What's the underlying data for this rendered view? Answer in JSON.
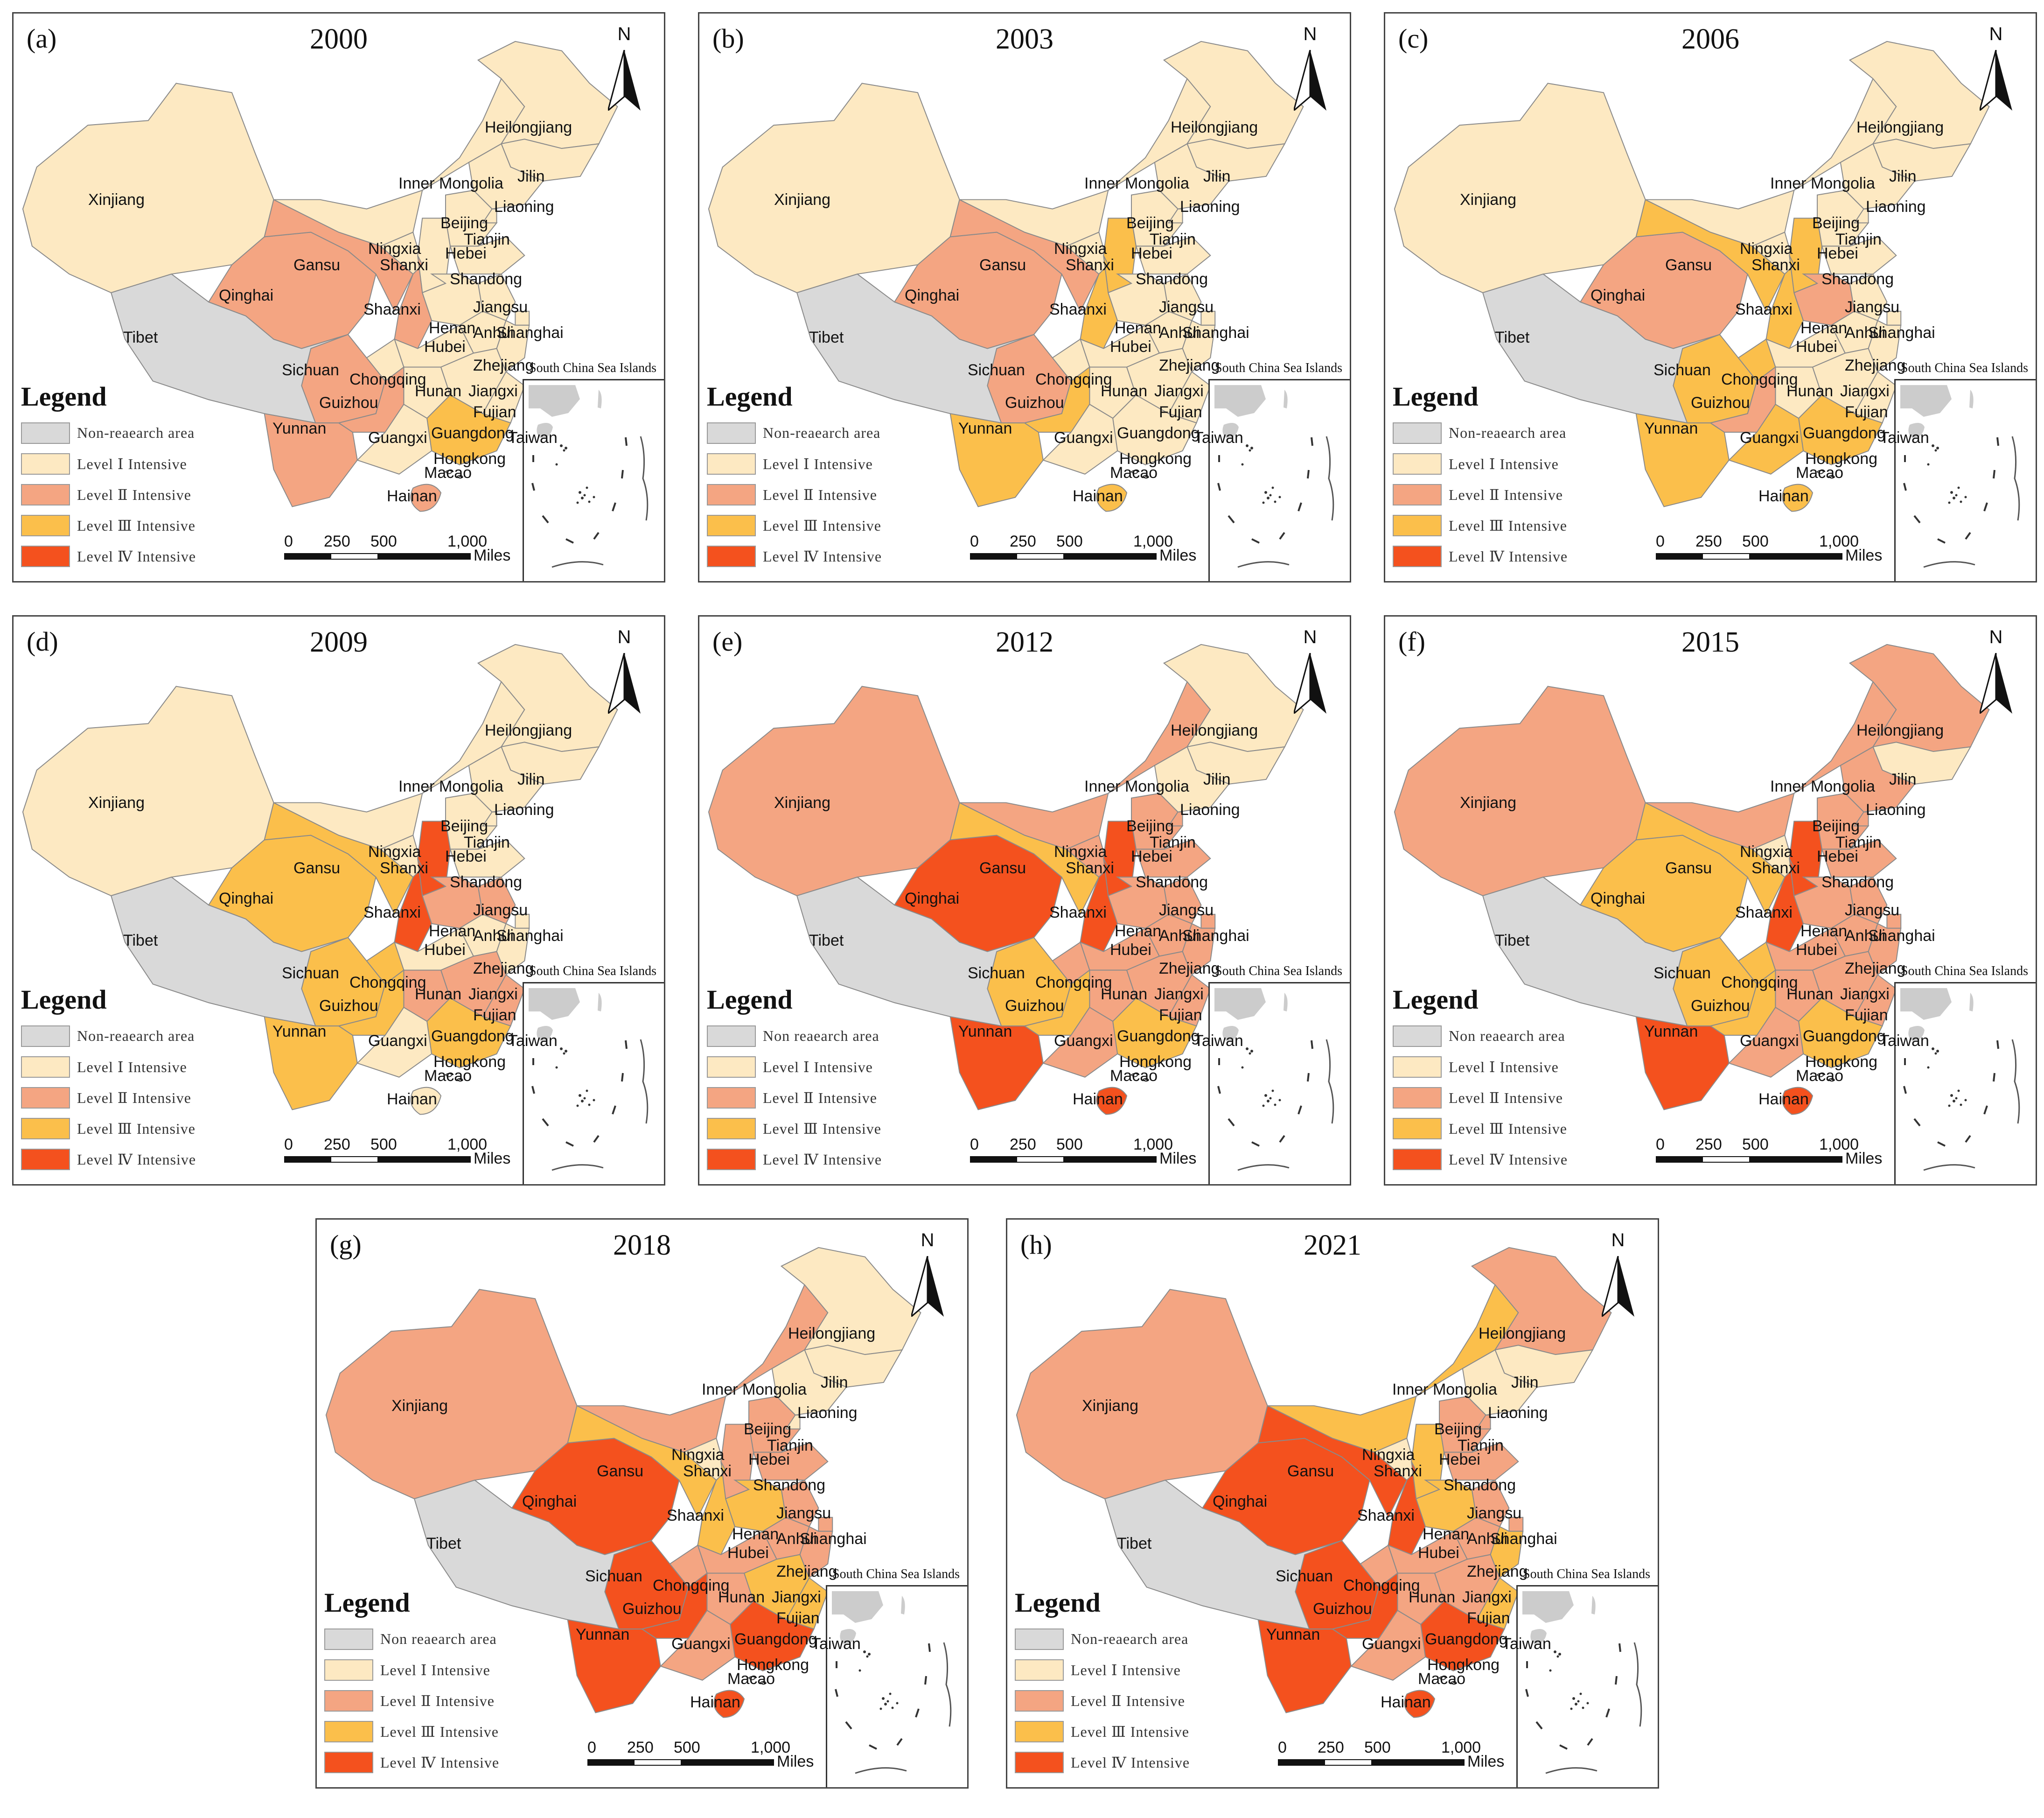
{
  "figure": {
    "legend_title": "Legend",
    "inset_title": "South China Sea Islands",
    "north_label": "N",
    "scale_ticks": [
      "0",
      "250",
      "500",
      "1,000"
    ],
    "scale_unit": "Miles"
  },
  "level_colors": {
    "non": "#d9d9d9",
    "L1": "#fde9c2",
    "L2": "#f4a582",
    "L3": "#fbbf4b",
    "L4": "#f4511e"
  },
  "panels": [
    {
      "letter": "(a)",
      "year": "2000",
      "legend": [
        "Non-reaearch area",
        "Level Ⅰ Intensive",
        "Level Ⅱ Intensive",
        "Level Ⅲ Intensive",
        "Level Ⅳ Intensive"
      ],
      "levels": {
        "Xinjiang": "L1",
        "Tibet": "non",
        "Qinghai": "L2",
        "Gansu": "L2",
        "Sichuan": "L2",
        "Yunnan": "L2",
        "Guizhou": "L2",
        "Chongqing": "L1",
        "Shaanxi": "L2",
        "Ningxia": "L1",
        "Inner Mongolia": "L1",
        "Heilongjiang": "L1",
        "Jilin": "L1",
        "Liaoning": "L1",
        "Beijing": "L1",
        "Tianjin": "L1",
        "Hebei": "L1",
        "Shanxi": "L1",
        "Shandong": "L1",
        "Henan": "L1",
        "Jiangsu": "L1",
        "Anhui": "L1",
        "Shanghai": "L1",
        "Hubei": "L1",
        "Zhejiang": "L1",
        "Hunan": "L1",
        "Jiangxi": "L1",
        "Fujian": "L1",
        "Guangxi": "L1",
        "Guangdong": "L3",
        "Hainan": "L2",
        "Taiwan": "L1"
      }
    },
    {
      "letter": "(b)",
      "year": "2003",
      "legend": [
        "Non-reaearch area",
        "Level Ⅰ Intensive",
        "Level Ⅱ Intensive",
        "Level Ⅲ Intensive",
        "Level Ⅳ Intensive"
      ],
      "levels": {
        "Xinjiang": "L1",
        "Tibet": "non",
        "Qinghai": "L2",
        "Gansu": "L2",
        "Sichuan": "L2",
        "Yunnan": "L3",
        "Guizhou": "L3",
        "Chongqing": "L1",
        "Shaanxi": "L3",
        "Ningxia": "L1",
        "Inner Mongolia": "L1",
        "Heilongjiang": "L1",
        "Jilin": "L1",
        "Liaoning": "L1",
        "Beijing": "L1",
        "Tianjin": "L1",
        "Hebei": "L1",
        "Shanxi": "L3",
        "Shandong": "L1",
        "Henan": "L1",
        "Jiangsu": "L1",
        "Anhui": "L1",
        "Shanghai": "L1",
        "Hubei": "L1",
        "Zhejiang": "L1",
        "Hunan": "L1",
        "Jiangxi": "L1",
        "Fujian": "L1",
        "Guangxi": "L1",
        "Guangdong": "L1",
        "Hainan": "L3",
        "Taiwan": "L1"
      }
    },
    {
      "letter": "(c)",
      "year": "2006",
      "legend": [
        "Non-reaearch area",
        "Level Ⅰ Intensive",
        "Level Ⅱ Intensive",
        "Level Ⅲ Intensive",
        "Level Ⅳ Intensive"
      ],
      "levels": {
        "Xinjiang": "L1",
        "Tibet": "non",
        "Qinghai": "L2",
        "Gansu": "L3",
        "Sichuan": "L3",
        "Yunnan": "L3",
        "Guizhou": "L2",
        "Chongqing": "L3",
        "Shaanxi": "L3",
        "Ningxia": "L1",
        "Inner Mongolia": "L1",
        "Heilongjiang": "L1",
        "Jilin": "L1",
        "Liaoning": "L1",
        "Beijing": "L1",
        "Tianjin": "L1",
        "Hebei": "L1",
        "Shanxi": "L3",
        "Shandong": "L1",
        "Henan": "L2",
        "Jiangsu": "L1",
        "Anhui": "L1",
        "Shanghai": "L1",
        "Hubei": "L1",
        "Zhejiang": "L1",
        "Hunan": "L1",
        "Jiangxi": "L1",
        "Fujian": "L1",
        "Guangxi": "L3",
        "Guangdong": "L3",
        "Hainan": "L3",
        "Taiwan": "L1"
      }
    },
    {
      "letter": "(d)",
      "year": "2009",
      "legend": [
        "Non-reaearch area",
        "Level Ⅰ Intensive",
        "Level Ⅱ Intensive",
        "Level Ⅲ Intensive",
        "Level Ⅳ Intensive"
      ],
      "levels": {
        "Xinjiang": "L1",
        "Tibet": "non",
        "Qinghai": "L3",
        "Gansu": "L3",
        "Sichuan": "L3",
        "Yunnan": "L3",
        "Guizhou": "L3",
        "Chongqing": "L3",
        "Shaanxi": "L4",
        "Ningxia": "L1",
        "Inner Mongolia": "L1",
        "Heilongjiang": "L1",
        "Jilin": "L1",
        "Liaoning": "L1",
        "Beijing": "L2",
        "Tianjin": "L1",
        "Hebei": "L1",
        "Shanxi": "L4",
        "Shandong": "L1",
        "Henan": "L2",
        "Jiangsu": "L2",
        "Anhui": "L1",
        "Shanghai": "L1",
        "Hubei": "L1",
        "Zhejiang": "L1",
        "Hunan": "L2",
        "Jiangxi": "L2",
        "Fujian": "L2",
        "Guangxi": "L1",
        "Guangdong": "L3",
        "Hainan": "L1",
        "Taiwan": "L1"
      }
    },
    {
      "letter": "(e)",
      "year": "2012",
      "legend": [
        "Non reaearch area",
        "Level Ⅰ Intensive",
        "Level Ⅱ Intensive",
        "Level Ⅲ Intensive",
        "Level Ⅳ Intensive"
      ],
      "levels": {
        "Xinjiang": "L2",
        "Tibet": "non",
        "Qinghai": "L4",
        "Gansu": "L3",
        "Sichuan": "L3",
        "Yunnan": "L4",
        "Guizhou": "L3",
        "Chongqing": "L2",
        "Shaanxi": "L4",
        "Ningxia": "L2",
        "Inner Mongolia": "L2",
        "Heilongjiang": "L1",
        "Jilin": "L1",
        "Liaoning": "L1",
        "Beijing": "L2",
        "Tianjin": "L2",
        "Hebei": "L2",
        "Shanxi": "L4",
        "Shandong": "L2",
        "Henan": "L2",
        "Jiangsu": "L2",
        "Anhui": "L2",
        "Shanghai": "L2",
        "Hubei": "L2",
        "Zhejiang": "L2",
        "Hunan": "L2",
        "Jiangxi": "L2",
        "Fujian": "L2",
        "Guangxi": "L2",
        "Guangdong": "L3",
        "Hainan": "L4",
        "Taiwan": "L1"
      }
    },
    {
      "letter": "(f)",
      "year": "2015",
      "legend": [
        "Non reaearch area",
        "Level Ⅰ Intensive",
        "Level Ⅱ Intensive",
        "Level Ⅲ Intensive",
        "Level Ⅳ Intensive"
      ],
      "levels": {
        "Xinjiang": "L2",
        "Tibet": "non",
        "Qinghai": "L3",
        "Gansu": "L3",
        "Sichuan": "L3",
        "Yunnan": "L4",
        "Guizhou": "L3",
        "Chongqing": "L3",
        "Shaanxi": "L4",
        "Ningxia": "L1",
        "Inner Mongolia": "L2",
        "Heilongjiang": "L2",
        "Jilin": "L1",
        "Liaoning": "L2",
        "Beijing": "L3",
        "Tianjin": "L2",
        "Hebei": "L2",
        "Shanxi": "L4",
        "Shandong": "L2",
        "Henan": "L2",
        "Jiangsu": "L2",
        "Anhui": "L2",
        "Shanghai": "L2",
        "Hubei": "L2",
        "Zhejiang": "L2",
        "Hunan": "L2",
        "Jiangxi": "L2",
        "Fujian": "L2",
        "Guangxi": "L2",
        "Guangdong": "L3",
        "Hainan": "L4",
        "Taiwan": "L1"
      }
    },
    {
      "letter": "(g)",
      "year": "2018",
      "legend": [
        "Non reaearch area",
        "Level Ⅰ Intensive",
        "Level Ⅱ Intensive",
        "Level Ⅲ Intensive",
        "Level Ⅳ Intensive"
      ],
      "levels": {
        "Xinjiang": "L2",
        "Tibet": "non",
        "Qinghai": "L4",
        "Gansu": "L3",
        "Sichuan": "L4",
        "Yunnan": "L4",
        "Guizhou": "L4",
        "Chongqing": "L2",
        "Shaanxi": "L3",
        "Ningxia": "L1",
        "Inner Mongolia": "L2",
        "Heilongjiang": "L1",
        "Jilin": "L1",
        "Liaoning": "L1",
        "Beijing": "L3",
        "Tianjin": "L1",
        "Hebei": "L2",
        "Shanxi": "L2",
        "Shandong": "L2",
        "Henan": "L3",
        "Jiangsu": "L2",
        "Anhui": "L2",
        "Shanghai": "L2",
        "Hubei": "L2",
        "Zhejiang": "L2",
        "Hunan": "L2",
        "Jiangxi": "L3",
        "Fujian": "L3",
        "Guangxi": "L2",
        "Guangdong": "L4",
        "Hainan": "L4",
        "Taiwan": "L1"
      }
    },
    {
      "letter": "(h)",
      "year": "2021",
      "legend": [
        "Non-reaearch area",
        "Level Ⅰ Intensive",
        "Level Ⅱ Intensive",
        "Level Ⅲ Intensive",
        "Level Ⅳ Intensive"
      ],
      "levels": {
        "Xinjiang": "L2",
        "Tibet": "non",
        "Qinghai": "L4",
        "Gansu": "L4",
        "Sichuan": "L4",
        "Yunnan": "L4",
        "Guizhou": "L4",
        "Chongqing": "L2",
        "Shaanxi": "L4",
        "Ningxia": "L1",
        "Inner Mongolia": "L3",
        "Heilongjiang": "L2",
        "Jilin": "L1",
        "Liaoning": "L1",
        "Beijing": "L4",
        "Tianjin": "L2",
        "Hebei": "L2",
        "Shanxi": "L3",
        "Shandong": "L2",
        "Henan": "L3",
        "Jiangsu": "L2",
        "Anhui": "L2",
        "Shanghai": "L2",
        "Hubei": "L2",
        "Zhejiang": "L3",
        "Hunan": "L2",
        "Jiangxi": "L2",
        "Fujian": "L3",
        "Guangxi": "L2",
        "Guangdong": "L4",
        "Hainan": "L4",
        "Taiwan": "L1"
      }
    }
  ]
}
